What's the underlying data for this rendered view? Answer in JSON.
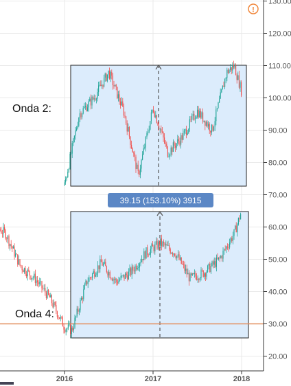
{
  "chart_data": {
    "type": "candlestick",
    "title": "",
    "xlabel": "",
    "ylabel": "",
    "ylim": [
      17,
      132
    ],
    "y_ticks": [
      20,
      30,
      40,
      50,
      60,
      70,
      80,
      90,
      100,
      110,
      120,
      130
    ],
    "y_tick_labels": [
      "20.00",
      "30.00",
      "40.00",
      "50.00",
      "60.00",
      "70.00",
      "80.00",
      "90.00",
      "100.00",
      "110.00",
      "120.00",
      "130.00"
    ],
    "x_ticks": [
      "2016",
      "2017",
      "2018"
    ],
    "grid": true,
    "series": [
      {
        "x": [
          "2015-01",
          "2015-03",
          "2015-05",
          "2015-07",
          "2015-09",
          "2015-11",
          "2016-01",
          "2016-02",
          "2016-04",
          "2016-06",
          "2016-08",
          "2016-10",
          "2016-12",
          "2017-02",
          "2017-04",
          "2017-06",
          "2017-08",
          "2017-10",
          "2017-12",
          "2018-01"
        ],
        "values": [
          60,
          61,
          58,
          48,
          44,
          38,
          29,
          28,
          43,
          49,
          43,
          46,
          52,
          55,
          52,
          44,
          46,
          50,
          58,
          65
        ]
      },
      {
        "x": [
          "2016-01",
          "2016-03",
          "2016-05",
          "2016-07",
          "2016-09",
          "2016-11",
          "2017-01",
          "2017-03",
          "2017-05",
          "2017-07",
          "2017-09",
          "2017-11",
          "2017-12",
          "2018-01"
        ],
        "values": [
          73,
          95,
          100,
          108,
          96,
          76,
          97,
          83,
          88,
          96,
          90,
          108,
          110,
          102
        ]
      }
    ],
    "annotations": {
      "onda2": "Onda 2:",
      "onda4": "Onda 4:",
      "measure": "39.15 (153.10%) 3915",
      "alert_icon": "!",
      "hline_value": 30
    },
    "colors": {
      "up": "#26a69a",
      "down": "#ef5350",
      "range_fill": "#dcecfc",
      "measure_label": "#5b87c5",
      "hline": "#e38f60",
      "alert": "#f0863a"
    }
  }
}
